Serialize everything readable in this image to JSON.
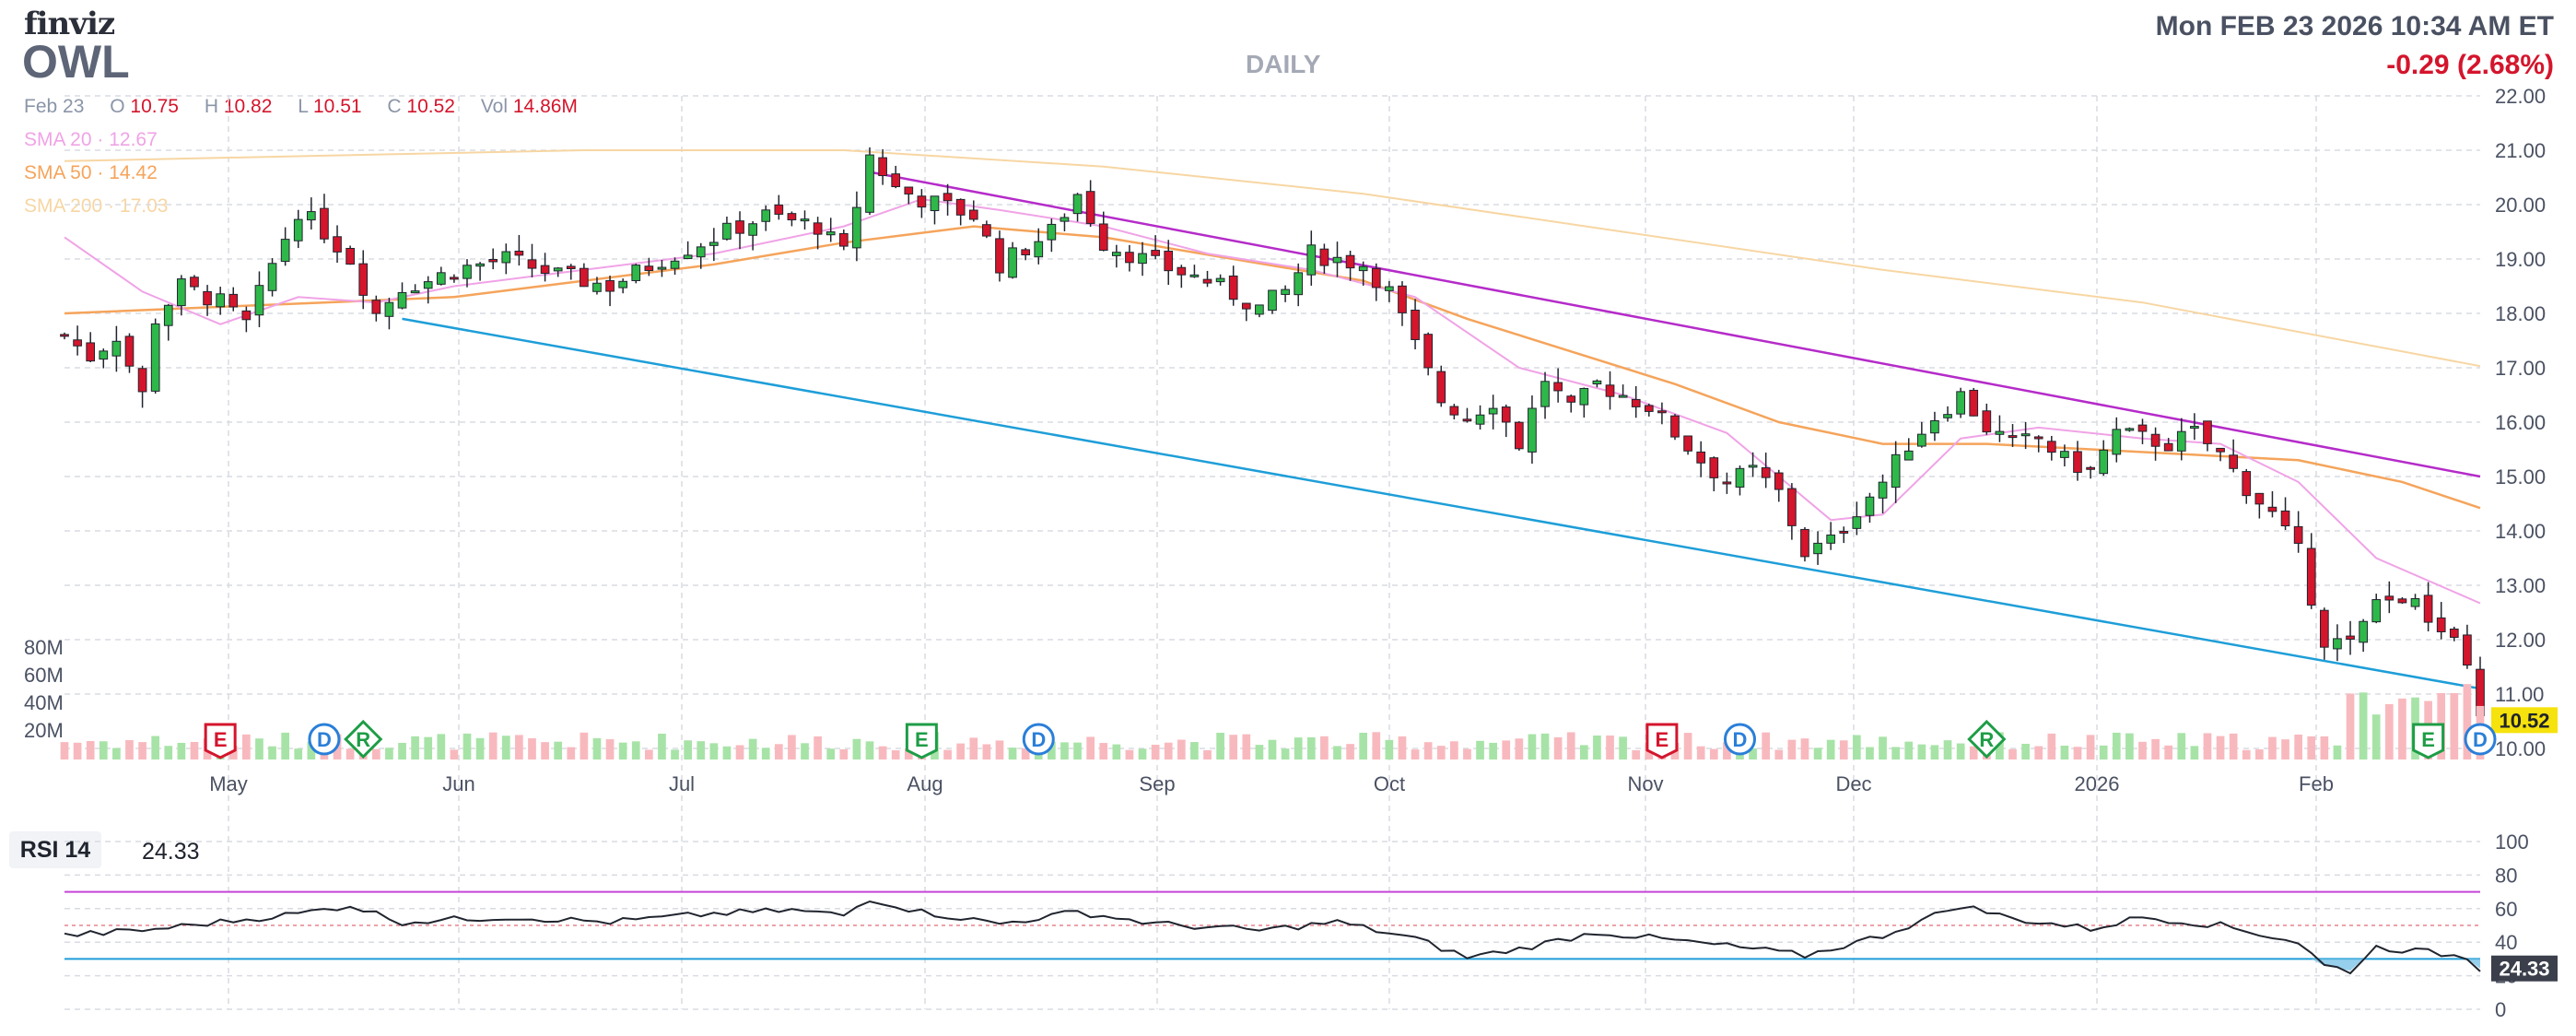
{
  "header": {
    "brand": "finviz",
    "ticker": "OWL",
    "timeframe": "DAILY",
    "datetime": "Mon FEB 23 2026 10:34 AM ET",
    "change": "-0.29 (2.68%)"
  },
  "ohlc": {
    "date": "Feb 23",
    "open_label": "O",
    "open": "10.75",
    "high_label": "H",
    "high": "10.82",
    "low_label": "L",
    "low": "10.51",
    "close_label": "C",
    "close": "10.52",
    "vol_label": "Vol",
    "vol": "14.86M"
  },
  "indicators": [
    {
      "label": "SMA 20",
      "value": "12.67",
      "color": "#f0a3e6"
    },
    {
      "label": "SMA 50",
      "value": "14.42",
      "color": "#f5a45b"
    },
    {
      "label": "SMA 200",
      "value": "17.03",
      "color": "#f7d6a3"
    }
  ],
  "colors": {
    "up": "#2fb84a",
    "down": "#d4152c",
    "up_vol": "#a7e3a7",
    "down_vol": "#f8b9be",
    "trend_upper": "#b52bc9",
    "trend_lower": "#1e9ed8",
    "grid": "#d8dbe2"
  },
  "chart_data": {
    "type": "candlestick",
    "price_axis": {
      "min": 10,
      "max": 22,
      "ticks": [
        "10.00",
        "11.00",
        "12.00",
        "13.00",
        "14.00",
        "15.00",
        "16.00",
        "17.00",
        "18.00",
        "19.00",
        "20.00",
        "21.00",
        "22.00"
      ]
    },
    "volume_axis": {
      "ticks": [
        "20M",
        "40M",
        "60M",
        "80M"
      ]
    },
    "x_labels": [
      "May",
      "Jun",
      "Jul",
      "Aug",
      "Sep",
      "Oct",
      "Nov",
      "Dec",
      "2026",
      "Feb"
    ],
    "last_price_label": "10.52",
    "close_path": [
      [
        0,
        17.6
      ],
      [
        2,
        17.2
      ],
      [
        4,
        17.6
      ],
      [
        6,
        16.5
      ],
      [
        7,
        17.9
      ],
      [
        9,
        18.5
      ],
      [
        12,
        18.2
      ],
      [
        14,
        17.8
      ],
      [
        16,
        18.9
      ],
      [
        18,
        19.9
      ],
      [
        20,
        19.5
      ],
      [
        22,
        19.0
      ],
      [
        24,
        18.0
      ],
      [
        26,
        18.5
      ],
      [
        28,
        18.6
      ],
      [
        30,
        18.8
      ],
      [
        34,
        19.0
      ],
      [
        38,
        18.7
      ],
      [
        42,
        18.5
      ],
      [
        46,
        19.0
      ],
      [
        50,
        19.4
      ],
      [
        54,
        19.8
      ],
      [
        58,
        19.6
      ],
      [
        60,
        19.1
      ],
      [
        62,
        20.9
      ],
      [
        64,
        20.3
      ],
      [
        66,
        20.1
      ],
      [
        70,
        19.8
      ],
      [
        72,
        18.9
      ],
      [
        74,
        19.2
      ],
      [
        76,
        19.5
      ],
      [
        78,
        20.2
      ],
      [
        80,
        19.3
      ],
      [
        84,
        18.9
      ],
      [
        88,
        18.6
      ],
      [
        92,
        18.1
      ],
      [
        94,
        18.4
      ],
      [
        96,
        19.1
      ],
      [
        100,
        18.9
      ],
      [
        102,
        18.4
      ],
      [
        104,
        17.4
      ],
      [
        106,
        16.4
      ],
      [
        108,
        16.1
      ],
      [
        110,
        16.4
      ],
      [
        112,
        15.6
      ],
      [
        114,
        16.8
      ],
      [
        116,
        16.2
      ],
      [
        118,
        16.7
      ],
      [
        120,
        16.5
      ],
      [
        122,
        16.3
      ],
      [
        124,
        15.8
      ],
      [
        126,
        15.3
      ],
      [
        128,
        14.9
      ],
      [
        130,
        15.1
      ],
      [
        132,
        14.7
      ],
      [
        134,
        13.6
      ],
      [
        136,
        13.8
      ],
      [
        138,
        14.4
      ],
      [
        140,
        14.9
      ],
      [
        142,
        15.6
      ],
      [
        144,
        16.1
      ],
      [
        146,
        16.5
      ],
      [
        148,
        15.9
      ],
      [
        150,
        15.6
      ],
      [
        152,
        15.7
      ],
      [
        154,
        15.3
      ],
      [
        156,
        15.1
      ],
      [
        158,
        15.8
      ],
      [
        160,
        15.7
      ],
      [
        162,
        15.6
      ],
      [
        164,
        15.8
      ],
      [
        166,
        15.4
      ],
      [
        168,
        14.8
      ],
      [
        170,
        14.3
      ],
      [
        172,
        13.6
      ],
      [
        174,
        12.0
      ],
      [
        176,
        11.9
      ],
      [
        178,
        12.6
      ],
      [
        180,
        12.8
      ],
      [
        182,
        12.4
      ],
      [
        184,
        11.9
      ],
      [
        185,
        11.4
      ],
      [
        186,
        10.52
      ]
    ],
    "sma20": [
      [
        0,
        19.4
      ],
      [
        6,
        18.4
      ],
      [
        12,
        17.8
      ],
      [
        18,
        18.3
      ],
      [
        24,
        18.2
      ],
      [
        30,
        18.5
      ],
      [
        40,
        18.8
      ],
      [
        50,
        19.1
      ],
      [
        60,
        19.6
      ],
      [
        66,
        20.1
      ],
      [
        72,
        19.9
      ],
      [
        80,
        19.6
      ],
      [
        88,
        19.1
      ],
      [
        96,
        18.8
      ],
      [
        104,
        18.3
      ],
      [
        112,
        17.0
      ],
      [
        120,
        16.5
      ],
      [
        128,
        15.8
      ],
      [
        136,
        14.2
      ],
      [
        140,
        14.3
      ],
      [
        146,
        15.7
      ],
      [
        152,
        15.9
      ],
      [
        160,
        15.7
      ],
      [
        166,
        15.6
      ],
      [
        172,
        14.9
      ],
      [
        178,
        13.5
      ],
      [
        186,
        12.67
      ]
    ],
    "sma50": [
      [
        0,
        18.0
      ],
      [
        10,
        18.1
      ],
      [
        20,
        18.2
      ],
      [
        30,
        18.3
      ],
      [
        40,
        18.6
      ],
      [
        50,
        18.9
      ],
      [
        60,
        19.3
      ],
      [
        70,
        19.6
      ],
      [
        80,
        19.4
      ],
      [
        90,
        19.0
      ],
      [
        100,
        18.6
      ],
      [
        108,
        17.9
      ],
      [
        116,
        17.3
      ],
      [
        124,
        16.7
      ],
      [
        132,
        16.0
      ],
      [
        140,
        15.6
      ],
      [
        148,
        15.6
      ],
      [
        156,
        15.5
      ],
      [
        164,
        15.4
      ],
      [
        172,
        15.3
      ],
      [
        180,
        14.9
      ],
      [
        186,
        14.42
      ]
    ],
    "sma200": [
      [
        0,
        20.8
      ],
      [
        20,
        20.9
      ],
      [
        40,
        21.0
      ],
      [
        60,
        21.0
      ],
      [
        80,
        20.7
      ],
      [
        100,
        20.2
      ],
      [
        120,
        19.5
      ],
      [
        140,
        18.8
      ],
      [
        160,
        18.2
      ],
      [
        186,
        17.03
      ]
    ],
    "trend_upper": [
      [
        62,
        20.6
      ],
      [
        186,
        15.0
      ]
    ],
    "trend_lower": [
      [
        26,
        17.9
      ],
      [
        186,
        11.1
      ]
    ],
    "events": [
      {
        "letter": "E",
        "kind": "earnings",
        "i": 12
      },
      {
        "letter": "D",
        "kind": "dividend",
        "i": 20
      },
      {
        "letter": "R",
        "kind": "revenue",
        "i": 23
      },
      {
        "letter": "E",
        "kind": "earnings",
        "i": 66
      },
      {
        "letter": "D",
        "kind": "dividend",
        "i": 75
      },
      {
        "letter": "E",
        "kind": "earnings",
        "i": 123
      },
      {
        "letter": "D",
        "kind": "dividend",
        "i": 129
      },
      {
        "letter": "R",
        "kind": "revenue",
        "i": 148
      },
      {
        "letter": "E",
        "kind": "earnings",
        "i": 182
      },
      {
        "letter": "D",
        "kind": "dividend",
        "i": 186
      }
    ]
  },
  "rsi": {
    "label": "RSI 14",
    "value": "24.33",
    "ticks": [
      "0",
      "20",
      "40",
      "60",
      "80",
      "100"
    ],
    "levels": [
      70,
      50,
      30
    ],
    "path": [
      [
        0,
        44
      ],
      [
        6,
        47
      ],
      [
        12,
        52
      ],
      [
        18,
        57
      ],
      [
        22,
        62
      ],
      [
        26,
        52
      ],
      [
        34,
        55
      ],
      [
        42,
        52
      ],
      [
        50,
        57
      ],
      [
        56,
        59
      ],
      [
        60,
        56
      ],
      [
        62,
        66
      ],
      [
        66,
        58
      ],
      [
        72,
        51
      ],
      [
        78,
        58
      ],
      [
        84,
        51
      ],
      [
        92,
        47
      ],
      [
        98,
        52
      ],
      [
        104,
        42
      ],
      [
        108,
        31
      ],
      [
        112,
        36
      ],
      [
        118,
        46
      ],
      [
        124,
        41
      ],
      [
        130,
        36
      ],
      [
        134,
        32
      ],
      [
        140,
        44
      ],
      [
        146,
        62
      ],
      [
        150,
        54
      ],
      [
        156,
        48
      ],
      [
        160,
        55
      ],
      [
        166,
        50
      ],
      [
        172,
        40
      ],
      [
        174,
        26
      ],
      [
        176,
        23
      ],
      [
        178,
        37
      ],
      [
        182,
        34
      ],
      [
        185,
        31
      ],
      [
        186,
        24.33
      ]
    ]
  }
}
